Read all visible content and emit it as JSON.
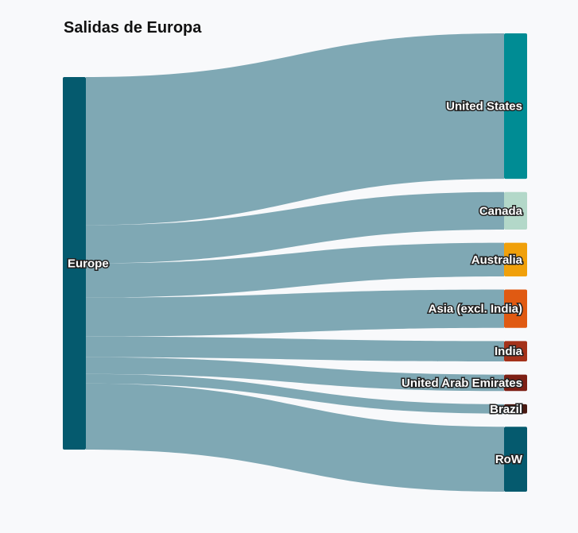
{
  "title": "Salidas de Europa",
  "chart_data": {
    "type": "sankey",
    "title": "Salidas de Europa",
    "source": {
      "name": "Europe",
      "color": "#055a6e"
    },
    "link_color": "#7fa8b4",
    "flows": [
      {
        "target": "United States",
        "value": 186,
        "color": "#008c94"
      },
      {
        "target": "Canada",
        "value": 48,
        "color": "#b3d8c9"
      },
      {
        "target": "Australia",
        "value": 43,
        "color": "#f0a00a"
      },
      {
        "target": "Asia (excl. India)",
        "value": 49,
        "color": "#e05a12"
      },
      {
        "target": "India",
        "value": 26,
        "color": "#a4321a"
      },
      {
        "target": "United Arab Emirates",
        "value": 21,
        "color": "#7d1f14"
      },
      {
        "target": "Brazil",
        "value": 12,
        "color": "#4a1a12"
      },
      {
        "target": "RoW",
        "value": 83,
        "color": "#055a6e"
      }
    ]
  }
}
